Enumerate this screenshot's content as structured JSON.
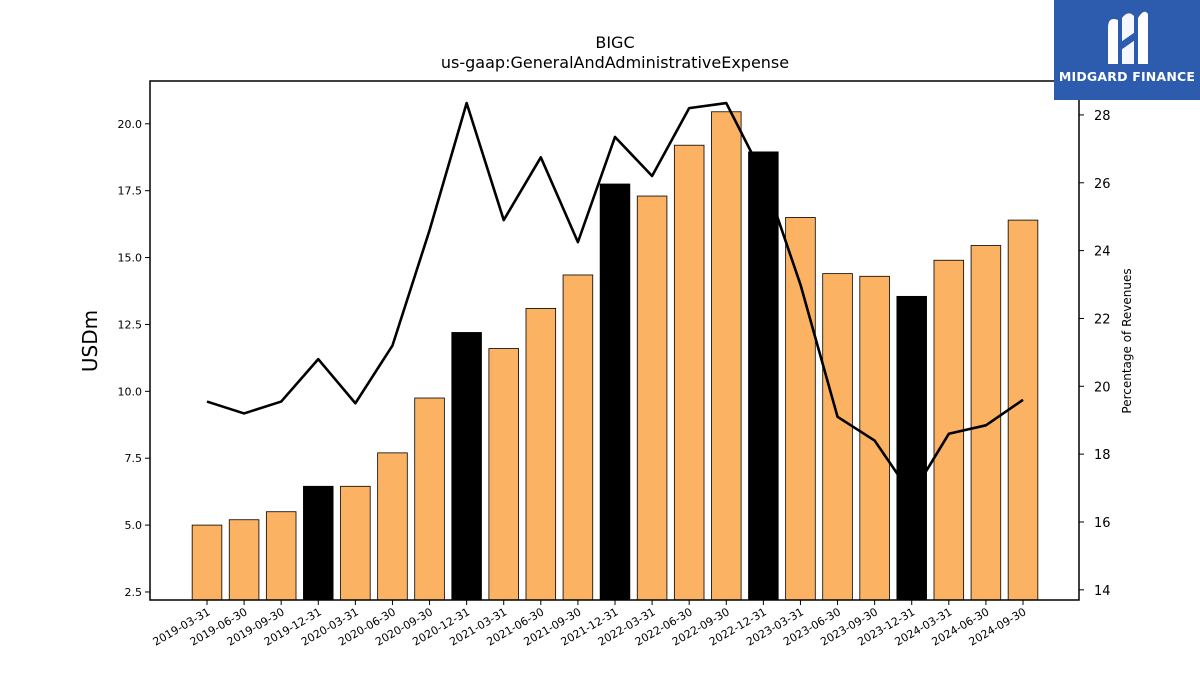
{
  "chart_data": {
    "type": "bar",
    "title": "BIGC",
    "subtitle": "us-gaap:GeneralAndAdministrativeExpense",
    "ylabel": "USDm",
    "y2label": "Percentage of Revenues",
    "ylim": [
      2.2,
      21.6
    ],
    "y2lim": [
      13.7,
      29.0
    ],
    "yticks": [
      2.5,
      5.0,
      7.5,
      10.0,
      12.5,
      15.0,
      17.5,
      20.0
    ],
    "y2ticks": [
      14,
      16,
      18,
      20,
      22,
      24,
      26,
      28
    ],
    "categories": [
      "2019-03-31",
      "2019-06-30",
      "2019-09-30",
      "2019-12-31",
      "2020-03-31",
      "2020-06-30",
      "2020-09-30",
      "2020-12-31",
      "2021-03-31",
      "2021-06-30",
      "2021-09-30",
      "2021-12-31",
      "2022-03-31",
      "2022-06-30",
      "2022-09-30",
      "2022-12-31",
      "2023-03-31",
      "2023-06-30",
      "2023-09-30",
      "2023-12-31",
      "2024-03-31",
      "2024-06-30",
      "2024-09-30"
    ],
    "series": [
      {
        "kind": "bar",
        "axis": "left",
        "values": [
          5.0,
          5.2,
          5.5,
          6.45,
          6.45,
          7.7,
          9.75,
          12.2,
          11.6,
          13.1,
          14.35,
          17.75,
          17.3,
          19.2,
          20.45,
          18.95,
          16.5,
          14.4,
          14.3,
          13.55,
          14.9,
          15.45,
          16.4
        ],
        "colors": [
          "#fbb262",
          "#fbb262",
          "#fbb262",
          "#000000",
          "#fbb262",
          "#fbb262",
          "#fbb262",
          "#000000",
          "#fbb262",
          "#fbb262",
          "#fbb262",
          "#000000",
          "#fbb262",
          "#fbb262",
          "#fbb262",
          "#000000",
          "#fbb262",
          "#fbb262",
          "#fbb262",
          "#000000",
          "#fbb262",
          "#fbb262",
          "#fbb262"
        ]
      },
      {
        "kind": "line",
        "axis": "right",
        "color": "#000000",
        "values": [
          19.55,
          19.2,
          19.55,
          20.8,
          19.5,
          21.2,
          24.6,
          28.35,
          24.9,
          26.75,
          24.25,
          27.35,
          26.2,
          28.2,
          28.35,
          26.2,
          23.0,
          19.1,
          18.4,
          16.8,
          18.6,
          18.85,
          19.6
        ]
      }
    ],
    "grid": false,
    "legend": "none"
  },
  "logo": {
    "brand": "MIDGARD FINANCE",
    "icon": "midgard-m-logo-icon",
    "background": "#2d5caf"
  }
}
